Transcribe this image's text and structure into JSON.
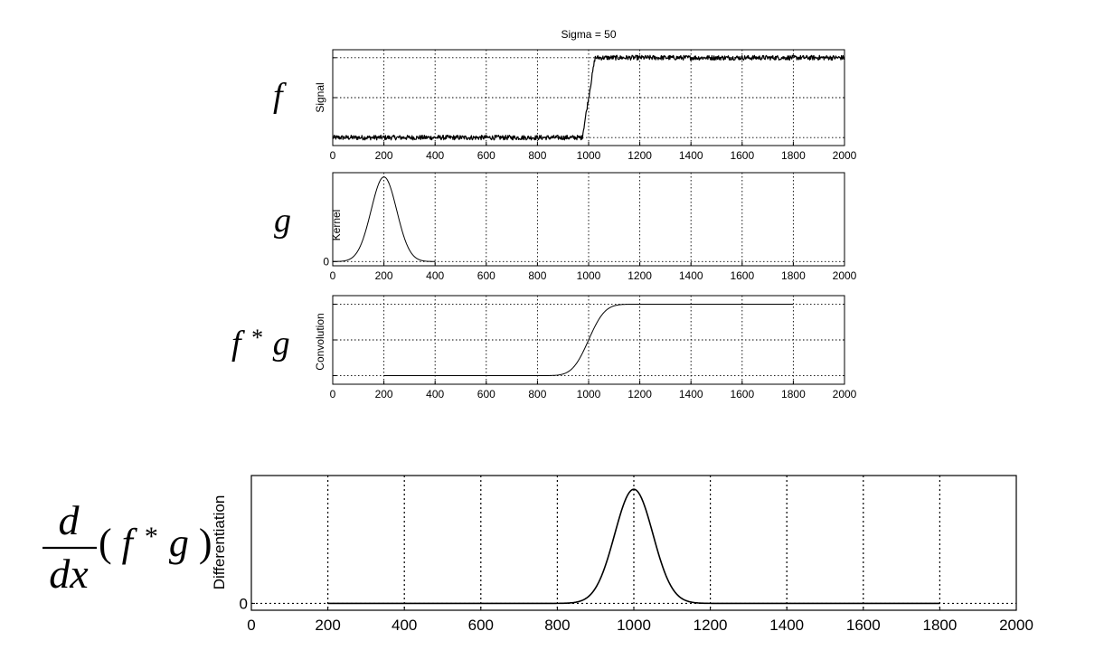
{
  "figure_title": "Sigma = 50",
  "panels": [
    {
      "key": "signal",
      "ylabel": "Signal",
      "ytick_labels": []
    },
    {
      "key": "kernel",
      "ylabel": "Kernel",
      "ytick_labels": [
        "0"
      ]
    },
    {
      "key": "convolution",
      "ylabel": "Convolution",
      "ytick_labels": []
    },
    {
      "key": "differentiation",
      "ylabel": "Differentiation",
      "ytick_labels": [
        "0"
      ]
    }
  ],
  "equations": {
    "f": "f",
    "g": "g",
    "fg_f": "f",
    "fg_star": "*",
    "fg_g": "g",
    "deriv_num": "d",
    "deriv_den": "dx",
    "deriv_open": "(",
    "deriv_f": "f",
    "deriv_star": "*",
    "deriv_g": "g",
    "deriv_close": ")"
  },
  "chart_data": [
    {
      "type": "line",
      "title": "Sigma = 50",
      "ylabel": "Signal",
      "xlim": [
        0,
        2000
      ],
      "ylim": [
        -0.1,
        1.1
      ],
      "x_ticks": [
        0,
        200,
        400,
        600,
        800,
        1000,
        1200,
        1400,
        1600,
        1800,
        2000
      ],
      "y_ticks": [
        0,
        0.5,
        1
      ],
      "grid": true,
      "series": [
        {
          "x": [
            0,
            975,
            1025,
            2000
          ],
          "y": [
            0,
            0,
            1,
            1
          ],
          "noise_amplitude": 0.03
        }
      ]
    },
    {
      "type": "line",
      "ylabel": "Kernel",
      "xlim": [
        0,
        2000
      ],
      "ylim": [
        -0.05,
        1.05
      ],
      "x_ticks": [
        0,
        200,
        400,
        600,
        800,
        1000,
        1200,
        1400,
        1600,
        1800,
        2000
      ],
      "y_ticks": [
        0
      ],
      "grid": true,
      "series": [
        {
          "function": "gaussian",
          "center": 200,
          "sigma": 50,
          "x_range": [
            0,
            400
          ],
          "peak": 1
        }
      ]
    },
    {
      "type": "line",
      "ylabel": "Convolution",
      "xlim": [
        0,
        2000
      ],
      "ylim": [
        -0.12,
        1.12
      ],
      "x_ticks": [
        0,
        200,
        400,
        600,
        800,
        1000,
        1200,
        1400,
        1600,
        1800,
        2000
      ],
      "y_ticks": [
        0,
        0.5,
        1
      ],
      "grid": true,
      "series": [
        {
          "function": "erf_step",
          "center": 1000,
          "sigma": 50,
          "x_range": [
            200,
            1800
          ],
          "low": 0,
          "high": 1
        }
      ]
    },
    {
      "type": "line",
      "ylabel": "Differentiation",
      "xlim": [
        0,
        2000
      ],
      "ylim": [
        -0.06,
        1.12
      ],
      "x_ticks": [
        0,
        200,
        400,
        600,
        800,
        1000,
        1200,
        1400,
        1600,
        1800,
        2000
      ],
      "y_ticks": [
        0
      ],
      "grid": true,
      "series": [
        {
          "function": "gaussian",
          "center": 1000,
          "sigma": 50,
          "x_range": [
            200,
            1800
          ],
          "peak": 1
        }
      ]
    }
  ]
}
